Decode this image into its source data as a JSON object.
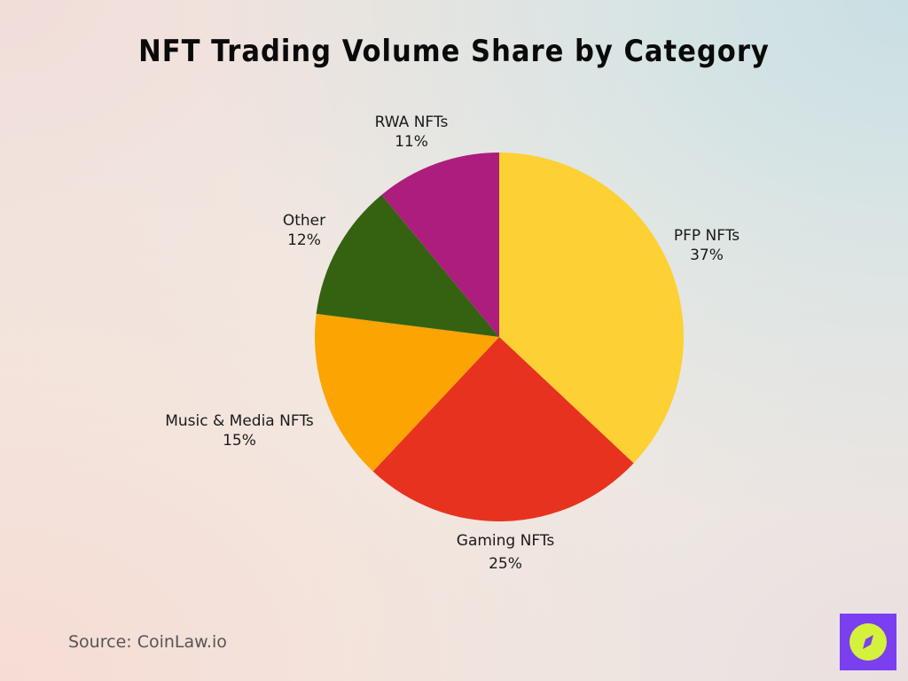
{
  "title": "NFT Trading Volume Share by Category",
  "source": "Source: CoinLaw.io",
  "logo": {
    "icon": "compass-icon",
    "bg": "#7a3ff0",
    "fg": "#d4f23b"
  },
  "labels": [
    {
      "name": "PFP NFTs",
      "pct": "37%"
    },
    {
      "name": "Gaming NFTs",
      "pct": "25%"
    },
    {
      "name": "Music & Media NFTs",
      "pct": "15%"
    },
    {
      "name": "Other",
      "pct": "12%"
    },
    {
      "name": "RWA NFTs",
      "pct": "11%"
    }
  ],
  "chart_data": {
    "type": "pie",
    "title": "NFT Trading Volume Share by Category",
    "categories": [
      "PFP NFTs",
      "Gaming NFTs",
      "Music & Media NFTs",
      "Other",
      "RWA NFTs"
    ],
    "values": [
      37,
      25,
      15,
      12,
      11
    ],
    "colors": [
      "#fdd033",
      "#e83220",
      "#fca402",
      "#346211",
      "#ad1d7d"
    ],
    "start_angle": "12 o'clock, clockwise",
    "unit": "%",
    "source": "CoinLaw.io"
  }
}
